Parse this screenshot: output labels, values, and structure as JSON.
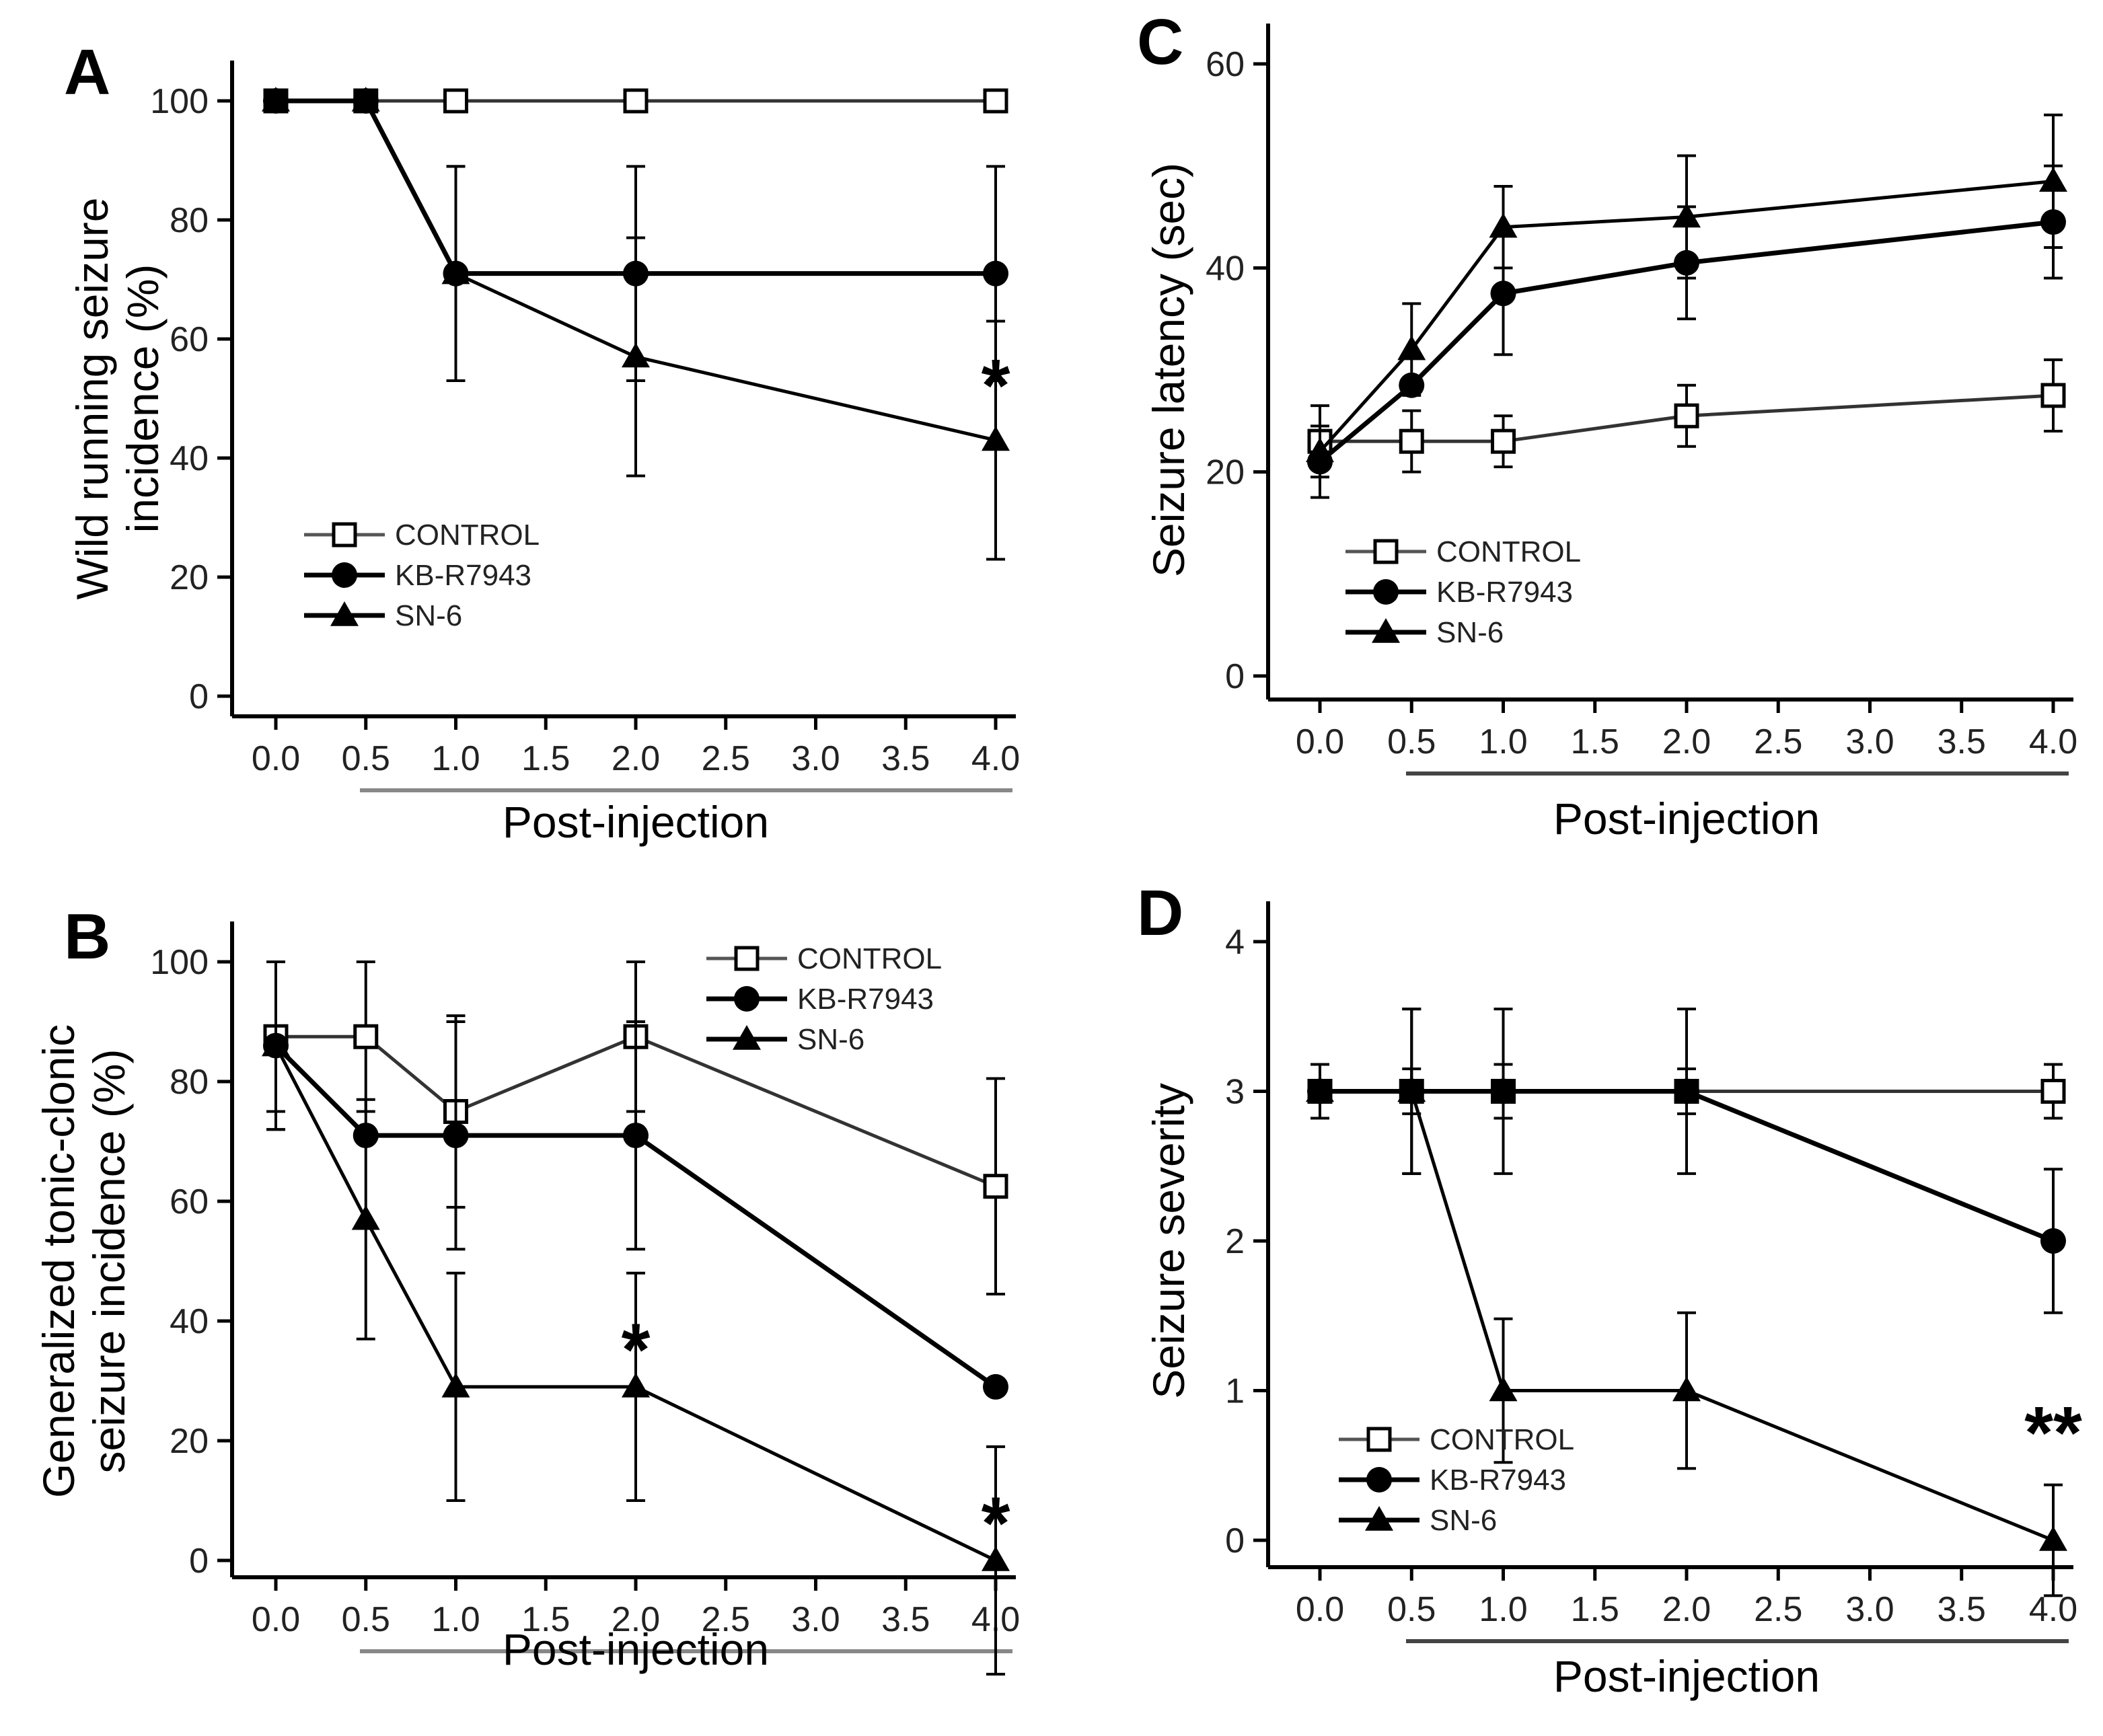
{
  "chart_data": [
    {
      "panel": "A",
      "type": "line",
      "x": [
        0.0,
        0.5,
        1.0,
        2.0,
        4.0
      ],
      "x_ticks": [
        "0.0",
        "0.5",
        "1.0",
        "1.5",
        "2.0",
        "2.5",
        "3.0",
        "3.5",
        "4.0"
      ],
      "y_ticks": [
        "0",
        "20",
        "40",
        "60",
        "80",
        "100"
      ],
      "xlim": [
        0.0,
        4.0
      ],
      "ylim": [
        0,
        100
      ],
      "xlabel": "Post-injection",
      "ylabel": "Wild running seizure incidence (%)",
      "ylabel_lines": [
        "Wild running seizure",
        "incidence (%)"
      ],
      "legend_position": "bottom-left",
      "series": [
        {
          "name": "CONTROL",
          "marker": "square-open",
          "values": [
            100,
            100,
            100,
            100,
            100
          ],
          "error": [
            0,
            0,
            0,
            0,
            0
          ]
        },
        {
          "name": "KB-R7943",
          "marker": "circle-filled",
          "values": [
            100,
            100,
            71,
            71,
            71
          ],
          "error": [
            0,
            0,
            18,
            18,
            18
          ]
        },
        {
          "name": "SN-6",
          "marker": "triangle-filled",
          "values": [
            100,
            100,
            71,
            57,
            43
          ],
          "error": [
            0,
            0,
            18,
            20,
            20
          ]
        }
      ],
      "annotations": [
        {
          "text": "*",
          "x": 4.0,
          "y": 53
        }
      ]
    },
    {
      "panel": "B",
      "type": "line",
      "x": [
        0.0,
        0.5,
        1.0,
        2.0,
        4.0
      ],
      "x_ticks": [
        "0.0",
        "0.5",
        "1.0",
        "1.5",
        "2.0",
        "2.5",
        "3.0",
        "3.5",
        "4.0"
      ],
      "y_ticks": [
        "0",
        "20",
        "40",
        "60",
        "80",
        "100"
      ],
      "xlim": [
        0.0,
        4.0
      ],
      "ylim": [
        0,
        100
      ],
      "xlabel": "Post-injection",
      "ylabel": "Generalized tonic-clonic seizure incidence (%)",
      "ylabel_lines": [
        "Generalized tonic-clonic",
        "seizure incidence (%)"
      ],
      "legend_position": "top-right",
      "series": [
        {
          "name": "CONTROL",
          "marker": "square-open",
          "values": [
            87.5,
            87.5,
            75,
            87.5,
            62.5
          ],
          "error": [
            12.5,
            12.5,
            16,
            12.5,
            18
          ]
        },
        {
          "name": "KB-R7943",
          "marker": "circle-filled",
          "values": [
            86,
            71,
            71,
            71,
            29
          ],
          "error": [
            14,
            0,
            19,
            19,
            0
          ]
        },
        {
          "name": "SN-6",
          "marker": "triangle-filled",
          "values": [
            86,
            57,
            29,
            29,
            0
          ],
          "error": [
            14,
            20,
            19,
            19,
            19
          ]
        }
      ],
      "annotations": [
        {
          "text": "*",
          "x": 2.0,
          "y": 36
        },
        {
          "text": "*",
          "x": 4.0,
          "y": 7
        }
      ]
    },
    {
      "panel": "C",
      "type": "line",
      "x": [
        0.0,
        0.5,
        1.0,
        2.0,
        4.0
      ],
      "x_ticks": [
        "0.0",
        "0.5",
        "1.0",
        "1.5",
        "2.0",
        "2.5",
        "3.0",
        "3.5",
        "4.0"
      ],
      "y_ticks": [
        "0",
        "20",
        "40",
        "60"
      ],
      "xlim": [
        0.0,
        4.0
      ],
      "ylim": [
        0,
        60
      ],
      "xlabel": "Post-injection",
      "ylabel": "Seizure latency (sec)",
      "ylabel_lines": [
        "Seizure latency (sec)"
      ],
      "legend_position": "bottom-left",
      "series": [
        {
          "name": "CONTROL",
          "marker": "square-open",
          "values": [
            23,
            23,
            23,
            25.5,
            27.5
          ],
          "error": [
            3.5,
            3,
            2.5,
            3,
            3.5
          ]
        },
        {
          "name": "KB-R7943",
          "marker": "circle-filled",
          "values": [
            21,
            28.5,
            37.5,
            40.5,
            44.5
          ],
          "error": [
            3.5,
            0,
            6,
            5.5,
            5.5
          ]
        },
        {
          "name": "SN-6",
          "marker": "triangle-filled",
          "values": [
            22,
            32,
            44,
            45,
            48.5
          ],
          "error": [
            0,
            4.5,
            4,
            6,
            6.5
          ]
        }
      ]
    },
    {
      "panel": "D",
      "type": "line",
      "x": [
        0.0,
        0.5,
        1.0,
        2.0,
        4.0
      ],
      "x_ticks": [
        "0.0",
        "0.5",
        "1.0",
        "1.5",
        "2.0",
        "2.5",
        "3.0",
        "3.5",
        "4.0"
      ],
      "y_ticks": [
        "0",
        "1",
        "2",
        "3",
        "4"
      ],
      "xlim": [
        0.0,
        4.0
      ],
      "ylim": [
        0,
        4
      ],
      "xlabel": "Post-injection",
      "ylabel": "Seizure severity",
      "ylabel_lines": [
        "Seizure severity"
      ],
      "legend_position": "bottom-left",
      "series": [
        {
          "name": "CONTROL",
          "marker": "square-open",
          "values": [
            3,
            3,
            3,
            3,
            3
          ],
          "error": [
            0.18,
            0.15,
            0.18,
            0.15,
            0.18
          ]
        },
        {
          "name": "KB-R7943",
          "marker": "circle-filled",
          "values": [
            3,
            3,
            3,
            3,
            2
          ],
          "error": [
            0.18,
            0.55,
            0.55,
            0.55,
            0.48
          ]
        },
        {
          "name": "SN-6",
          "marker": "triangle-filled",
          "values": [
            3,
            3,
            1,
            1,
            0
          ],
          "error": [
            0.18,
            0.55,
            0.48,
            0.52,
            0.37
          ]
        }
      ],
      "annotations": [
        {
          "text": "**",
          "x": 4.0,
          "y": 0.75
        }
      ]
    }
  ]
}
